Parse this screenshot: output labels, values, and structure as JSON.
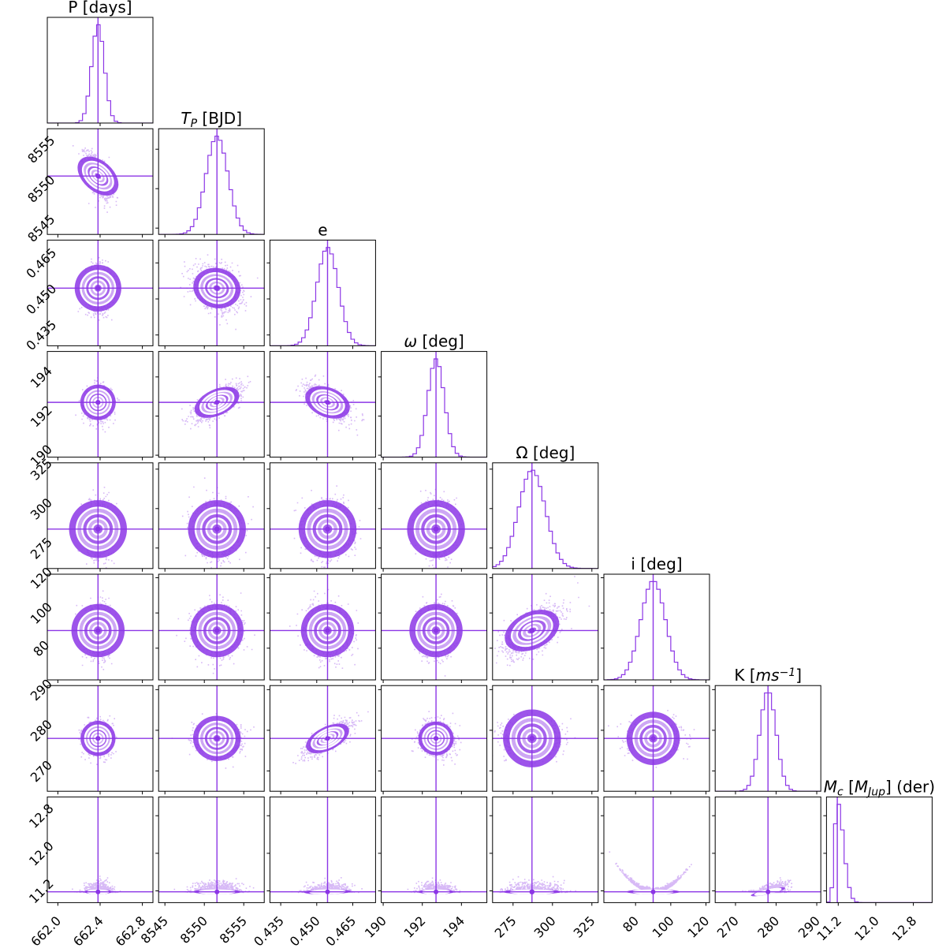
{
  "chart_data": {
    "type": "corner",
    "color": "#8c36e6",
    "contour_color": "#ffffff",
    "params": [
      {
        "label": "P [days]",
        "label_parts": [
          {
            "t": "P [days]"
          }
        ],
        "median": 662.38,
        "sigma": 0.06,
        "range": [
          661.9,
          662.9
        ],
        "ticks": [
          "662.0",
          "662.4",
          "662.8"
        ]
      },
      {
        "label": "T_P [BJD]",
        "label_parts": [
          {
            "t": "T",
            "i": true
          },
          {
            "t": "P",
            "sub": true,
            "i": true
          },
          {
            "t": " [BJD]"
          }
        ],
        "median": 8551.6,
        "sigma": 1.4,
        "range": [
          8544.2,
          8557.6
        ],
        "ticks": [
          "8545",
          "8550",
          "8555"
        ]
      },
      {
        "label": "e",
        "label_parts": [
          {
            "t": "e"
          }
        ],
        "median": 0.4545,
        "sigma": 0.0045,
        "range": [
          0.4305,
          0.4745
        ],
        "ticks": [
          "0.435",
          "0.450",
          "0.465"
        ]
      },
      {
        "label": "ω [deg]",
        "label_parts": [
          {
            "t": "ω",
            "i": true
          },
          {
            "t": " [deg]"
          }
        ],
        "median": 192.7,
        "sigma": 0.42,
        "range": [
          189.9,
          195.3
        ],
        "ticks": [
          "190",
          "192",
          "194"
        ]
      },
      {
        "label": "Ω [deg]",
        "label_parts": [
          {
            "t": "Ω [deg]"
          }
        ],
        "median": 287,
        "sigma": 8.5,
        "range": [
          262,
          329
        ],
        "ticks": [
          "275",
          "300",
          "325"
        ]
      },
      {
        "label": "i [deg]",
        "label_parts": [
          {
            "t": "i [deg]"
          }
        ],
        "median": 90,
        "sigma": 7.0,
        "range": [
          62,
          122
        ],
        "ticks": [
          "80",
          "100",
          "120"
        ]
      },
      {
        "label": "K [ms^-1]",
        "label_parts": [
          {
            "t": "K ["
          },
          {
            "t": "ms",
            "i": true
          },
          {
            "t": "−1",
            "sup": true,
            "i": true
          },
          {
            "t": "]"
          }
        ],
        "median": 278,
        "sigma": 2.0,
        "range": [
          265,
          291
        ],
        "ticks": [
          "270",
          "280",
          "290"
        ]
      },
      {
        "label": "M_c [M_Jup] (der)",
        "label_parts": [
          {
            "t": "M",
            "i": true
          },
          {
            "t": "c",
            "sub": true,
            "i": true
          },
          {
            "t": " ["
          },
          {
            "t": "M",
            "i": true
          },
          {
            "t": "Jup",
            "sub": true,
            "i": true
          },
          {
            "t": "] (der)"
          }
        ],
        "median": 11.18,
        "sigma": 0.06,
        "range": [
          10.95,
          13.2
        ],
        "ticks": [
          "11.2",
          "12.0",
          "12.8"
        ]
      }
    ],
    "correlations": [
      {
        "pair": [
          "P [days]",
          "T_P [BJD]"
        ],
        "rho": -0.6
      },
      {
        "pair": [
          "P [days]",
          "e"
        ],
        "rho": 0.0
      },
      {
        "pair": [
          "T_P [BJD]",
          "e"
        ],
        "rho": -0.3
      },
      {
        "pair": [
          "P [days]",
          "ω [deg]"
        ],
        "rho": 0.0
      },
      {
        "pair": [
          "T_P [BJD]",
          "ω [deg]"
        ],
        "rho": 0.7
      },
      {
        "pair": [
          "e",
          "ω [deg]"
        ],
        "rho": -0.6
      },
      {
        "pair": [
          "P [days]",
          "Ω [deg]"
        ],
        "rho": 0.0
      },
      {
        "pair": [
          "T_P [BJD]",
          "Ω [deg]"
        ],
        "rho": 0.0
      },
      {
        "pair": [
          "e",
          "Ω [deg]"
        ],
        "rho": 0.0
      },
      {
        "pair": [
          "ω [deg]",
          "Ω [deg]"
        ],
        "rho": 0.0
      },
      {
        "pair": [
          "P [days]",
          "i [deg]"
        ],
        "rho": 0.0
      },
      {
        "pair": [
          "T_P [BJD]",
          "i [deg]"
        ],
        "rho": 0.0
      },
      {
        "pair": [
          "e",
          "i [deg]"
        ],
        "rho": 0.0
      },
      {
        "pair": [
          "ω [deg]",
          "i [deg]"
        ],
        "rho": 0.0
      },
      {
        "pair": [
          "Ω [deg]",
          "i [deg]"
        ],
        "rho": 0.6
      },
      {
        "pair": [
          "P [days]",
          "K [ms^-1]"
        ],
        "rho": 0.0
      },
      {
        "pair": [
          "T_P [BJD]",
          "K [ms^-1]"
        ],
        "rho": -0.1
      },
      {
        "pair": [
          "e",
          "K [ms^-1]"
        ],
        "rho": 0.75
      },
      {
        "pair": [
          "ω [deg]",
          "K [ms^-1]"
        ],
        "rho": -0.1
      },
      {
        "pair": [
          "Ω [deg]",
          "K [ms^-1]"
        ],
        "rho": 0.0
      },
      {
        "pair": [
          "i [deg]",
          "K [ms^-1]"
        ],
        "rho": 0.0
      },
      {
        "pair": [
          "P [days]",
          "M_c [M_Jup] (der)"
        ],
        "rho": 0.0
      },
      {
        "pair": [
          "T_P [BJD]",
          "M_c [M_Jup] (der)"
        ],
        "rho": 0.0
      },
      {
        "pair": [
          "e",
          "M_c [M_Jup] (der)"
        ],
        "rho": 0.1
      },
      {
        "pair": [
          "ω [deg]",
          "M_c [M_Jup] (der)"
        ],
        "rho": 0.0
      },
      {
        "pair": [
          "Ω [deg]",
          "M_c [M_Jup] (der)"
        ],
        "rho": 0.0
      },
      {
        "pair": [
          "i [deg]",
          "M_c [M_Jup] (der)"
        ],
        "rho": 0.0,
        "shape": "parabola"
      },
      {
        "pair": [
          "K [ms^-1]",
          "M_c [M_Jup] (der)"
        ],
        "rho": 0.7
      }
    ]
  }
}
